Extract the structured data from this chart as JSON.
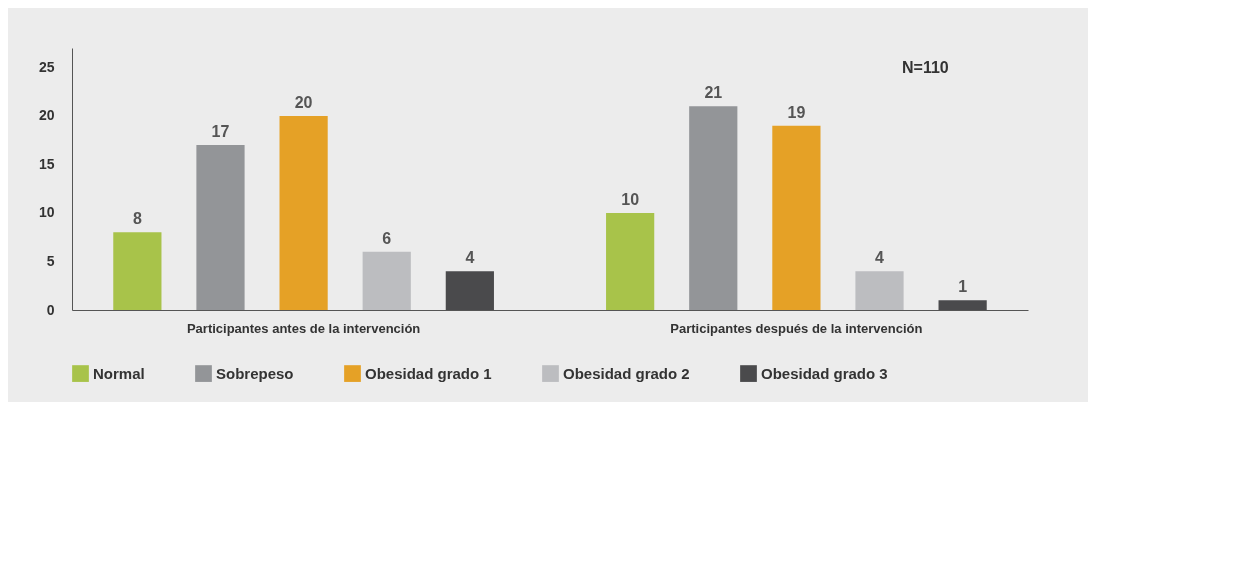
{
  "chart_data": {
    "type": "bar",
    "categories": [
      "Participantes antes de la intervención",
      "Participantes después de la intervención"
    ],
    "series": [
      {
        "name": "Normal",
        "color": "#a8c34a",
        "values": [
          8,
          10
        ]
      },
      {
        "name": "Sobrepeso",
        "color": "#939598",
        "values": [
          17,
          21
        ]
      },
      {
        "name": "Obesidad grado 1",
        "color": "#e5a126",
        "values": [
          20,
          19
        ]
      },
      {
        "name": "Obesidad grado 2",
        "color": "#bcbdc0",
        "values": [
          6,
          4
        ]
      },
      {
        "name": "Obesidad grado 3",
        "color": "#4a4a4c",
        "values": [
          4,
          1
        ]
      }
    ],
    "ylim": [
      0,
      27
    ],
    "yticks": [
      0,
      5,
      10,
      15,
      20,
      25
    ],
    "data_labels": true,
    "legend": "bottom",
    "grid": false,
    "annotations": [
      "N=110"
    ]
  }
}
